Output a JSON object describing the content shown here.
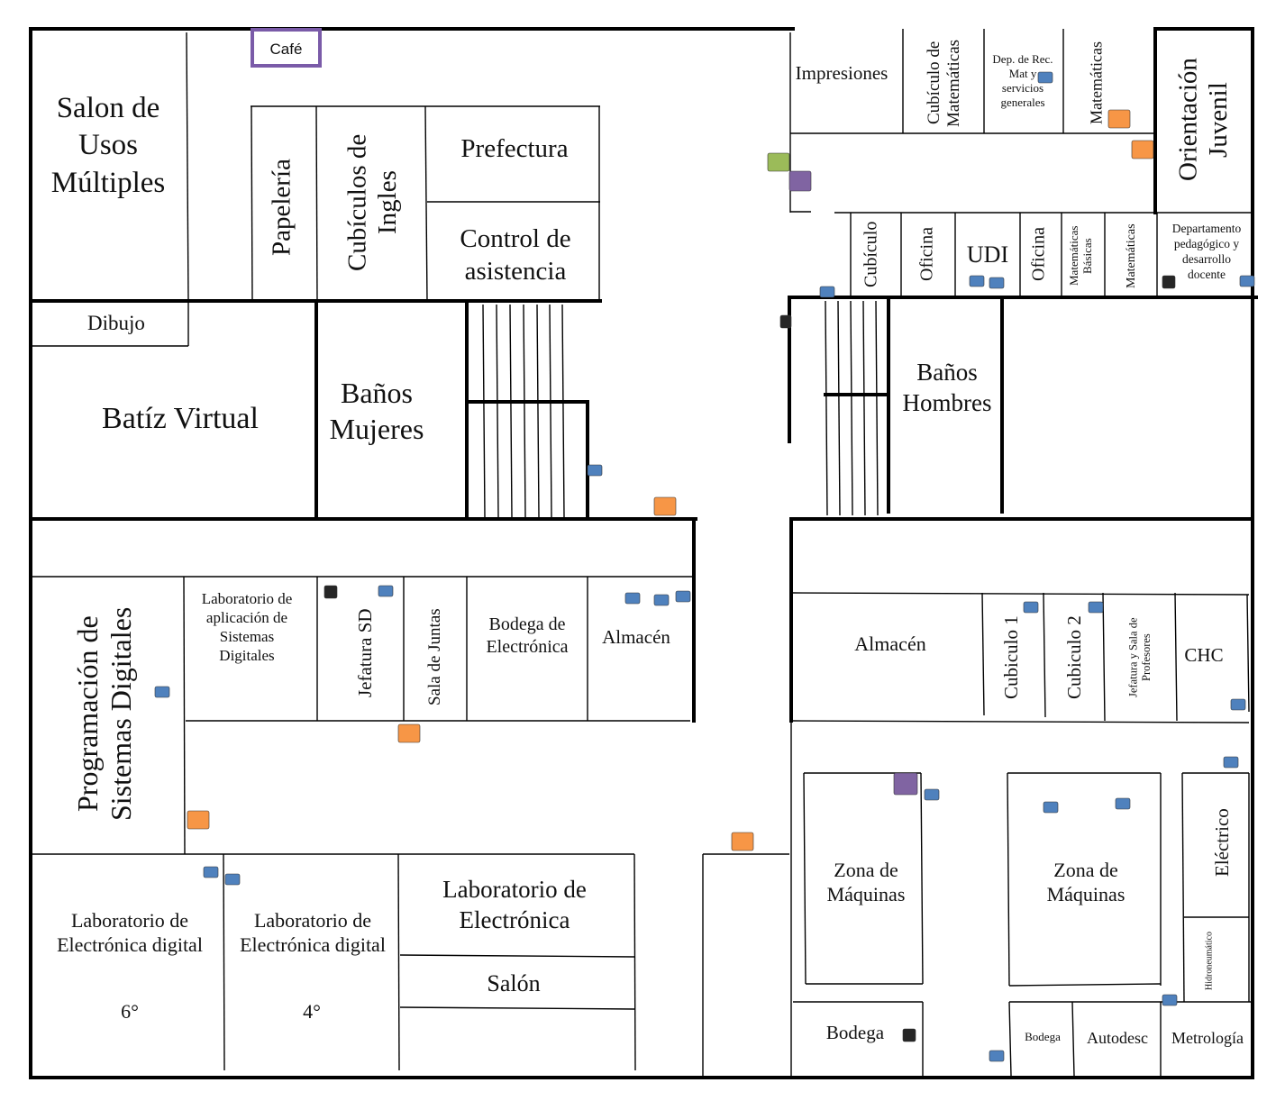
{
  "rooms": {
    "cafe": "Café",
    "salon_usos": "Salon de Usos Múltiples",
    "papeleria": "Papelería",
    "cubiculos_ingles": "Cubículos de Ingles",
    "prefectura": "Prefectura",
    "control_asistencia": "Control de asistencia",
    "dibujo": "Dibujo",
    "batiz_virtual": "Batíz Virtual",
    "banos_mujeres": "Baños Mujeres",
    "impresiones": "Impresiones",
    "cubiculo_matematicas": "Cubículo de Matemáticas",
    "dep_rec_mat": "Dep. de Rec. Mat y servicios generales",
    "matematicas_top": "Matemáticas",
    "orientacion_juvenil": "Orientación Juvenil",
    "cubiculo_top": "Cubículo",
    "oficina_1": "Oficina",
    "udi": "UDI",
    "oficina_2": "Oficina",
    "matematicas_basicas": "Matemáticas Básicas",
    "matematicas_mid": "Matemáticas",
    "depto_pedagogico": "Departamento pedagógico y desarrollo docente",
    "banos_hombres": "Baños Hombres",
    "programacion_sd": "Programación de Sistemas Digitales",
    "lab_aplicacion_sd": "Laboratorio de aplicación de Sistemas Digitales",
    "jefatura_sd": "Jefatura SD",
    "sala_juntas": "Sala de Juntas",
    "bodega_electronica": "Bodega de Electrónica",
    "almacen_left": "Almacén",
    "almacen_right": "Almacén",
    "cubiculo_1": "Cubiculo 1",
    "cubiculo_2": "Cubiculo 2",
    "jefatura_sala_profesores": "Jefatura y Sala de Profesores",
    "chc": "CHC",
    "lab_electronica_digital_6": "Laboratorio de Electrónica digital",
    "grade_6": "6°",
    "lab_electronica_digital_4": "Laboratorio de Electrónica digital",
    "grade_4": "4°",
    "lab_electronica": "Laboratorio de Electrónica",
    "salon": "Salón",
    "zona_maquinas_1": "Zona de Máquinas",
    "zona_maquinas_2": "Zona de Máquinas",
    "electrico": "Eléctrico",
    "hidroneumatico": "Hidroneumático",
    "bodega_big": "Bodega",
    "bodega_small": "Bodega",
    "autodesc": "Autodesc",
    "metrologia": "Metrología"
  },
  "marker_colors": {
    "blue": "#4f81bd",
    "orange": "#f79646",
    "purple": "#8064a2",
    "green": "#9bbb59",
    "black": "#262626"
  }
}
